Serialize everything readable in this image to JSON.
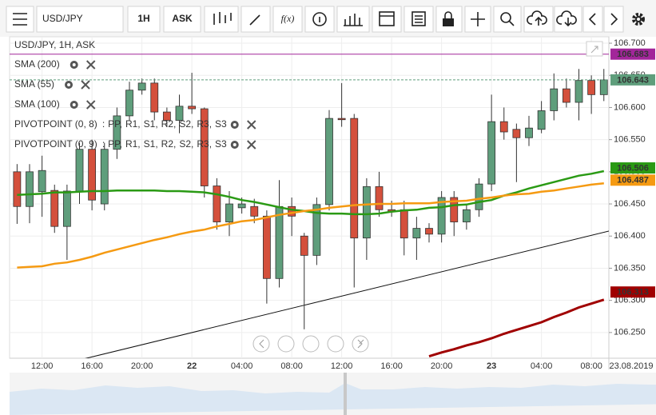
{
  "toolbar": {
    "symbol": "USD/JPY",
    "interval": "1H",
    "side": "ASK",
    "function": "f(x)"
  },
  "legend": {
    "title": "USD/JPY, 1H, ASK",
    "indicators": [
      {
        "name": "SMA (200)",
        "color": "#b00000"
      },
      {
        "name": "SMA (55)",
        "color": "#2a9a14"
      },
      {
        "name": "SMA (100)",
        "color": "#f59a12"
      }
    ],
    "pivots": [
      {
        "name": "PIVOTPOINT (0, 8)"
      },
      {
        "name": "PIVOTPOINT (0, 9)"
      }
    ],
    "separator": ":",
    "pivot_items": [
      {
        "text": "PP,",
        "color": "#d63ad6"
      },
      {
        "text": "R1,",
        "color": "#1a9a5a"
      },
      {
        "text": "S1,",
        "color": "#8a8a1a"
      },
      {
        "text": "R2,",
        "color": "#2a3aa0"
      },
      {
        "text": "S2,",
        "color": "#555555"
      },
      {
        "text": "R3,",
        "color": "#e0801a"
      },
      {
        "text": "S3",
        "color": "#9a2ab0"
      }
    ]
  },
  "chart_data": {
    "type": "candlestick",
    "categories": [
      null,
      null,
      "12:00",
      null,
      null,
      null,
      "16:00",
      null,
      null,
      null,
      "20:00",
      null,
      null,
      null,
      "22",
      null,
      null,
      null,
      "04:00",
      null,
      null,
      null,
      "08:00",
      null,
      null,
      null,
      "12:00",
      null,
      null,
      null,
      "16:00",
      null,
      null,
      null,
      "20:00",
      null,
      null,
      null,
      "23",
      null,
      null,
      null,
      "04:00",
      null,
      null,
      null,
      "08:00",
      null
    ],
    "date_label": "23.08.2019",
    "open": [
      106.5,
      106.446,
      106.469,
      106.471,
      106.415,
      106.469,
      106.535,
      106.45,
      106.535,
      106.587,
      106.627,
      106.638,
      106.593,
      106.58,
      106.602,
      106.598,
      106.478,
      106.422,
      106.444,
      106.446,
      106.431,
      106.334,
      106.446,
      106.4,
      106.37,
      106.449,
      106.583,
      106.583,
      106.397,
      106.477,
      106.441,
      106.441,
      106.397,
      106.412,
      106.403,
      106.46,
      106.422,
      106.441,
      106.481,
      106.578,
      106.566,
      106.553,
      106.566,
      106.595,
      106.629,
      106.608,
      106.642,
      106.62
    ],
    "high": [
      106.512,
      106.512,
      106.525,
      106.48,
      106.48,
      106.545,
      106.55,
      106.545,
      106.6,
      106.64,
      106.645,
      106.645,
      106.6,
      106.62,
      106.654,
      106.6,
      106.49,
      106.47,
      106.46,
      106.458,
      106.44,
      106.487,
      106.46,
      106.405,
      106.46,
      106.596,
      106.638,
      106.59,
      106.49,
      106.5,
      106.455,
      106.455,
      106.43,
      106.42,
      106.47,
      106.47,
      106.45,
      106.49,
      106.62,
      106.6,
      106.575,
      106.587,
      106.61,
      106.653,
      106.645,
      106.66,
      106.65,
      106.66
    ],
    "low": [
      106.419,
      106.42,
      106.43,
      106.405,
      106.363,
      106.45,
      106.44,
      106.44,
      106.52,
      106.58,
      106.62,
      106.58,
      106.57,
      106.56,
      106.59,
      106.46,
      106.41,
      106.4,
      106.435,
      106.42,
      106.295,
      106.32,
      106.4,
      106.255,
      106.355,
      106.44,
      106.57,
      106.32,
      106.363,
      106.43,
      106.43,
      106.37,
      106.363,
      106.39,
      106.39,
      106.4,
      106.41,
      106.43,
      106.47,
      106.55,
      106.484,
      106.54,
      106.56,
      106.58,
      106.6,
      106.58,
      106.59,
      106.61
    ],
    "close": [
      106.446,
      106.5,
      106.502,
      106.415,
      106.47,
      106.535,
      106.456,
      106.535,
      106.587,
      106.627,
      106.638,
      106.593,
      106.58,
      106.602,
      106.598,
      106.478,
      106.422,
      106.45,
      106.45,
      106.431,
      106.334,
      106.446,
      106.431,
      106.37,
      106.449,
      106.583,
      106.581,
      106.397,
      106.477,
      106.441,
      106.438,
      106.397,
      106.412,
      106.403,
      106.46,
      106.422,
      106.441,
      106.481,
      106.578,
      106.562,
      106.553,
      106.568,
      106.595,
      106.629,
      106.608,
      106.642,
      106.62,
      106.643
    ],
    "up_color": "#5f9e7c",
    "down_color": "#d4503c",
    "series": [
      {
        "name": "SMA (200)",
        "color": "#a00000",
        "width": 3,
        "values": [
          null,
          null,
          null,
          null,
          null,
          null,
          null,
          null,
          null,
          null,
          null,
          null,
          null,
          null,
          null,
          null,
          null,
          null,
          null,
          null,
          null,
          null,
          null,
          null,
          null,
          null,
          null,
          null,
          null,
          null,
          null,
          null,
          null,
          106.213,
          106.219,
          106.224,
          106.23,
          106.235,
          106.241,
          106.248,
          106.254,
          106.26,
          106.266,
          106.274,
          106.281,
          106.289,
          106.295,
          106.301
        ]
      },
      {
        "name": "SMA (55)",
        "color": "#2a9a14",
        "width": 2.5,
        "values": [
          106.464,
          106.465,
          106.466,
          106.468,
          106.468,
          106.469,
          106.47,
          106.47,
          106.471,
          106.471,
          106.471,
          106.471,
          106.47,
          106.47,
          106.469,
          106.468,
          106.465,
          106.461,
          106.456,
          106.453,
          106.449,
          106.445,
          106.441,
          106.439,
          106.436,
          106.435,
          106.435,
          106.434,
          106.434,
          106.435,
          106.438,
          106.44,
          106.441,
          106.444,
          106.445,
          106.448,
          106.449,
          106.453,
          106.456,
          106.463,
          106.468,
          106.474,
          106.479,
          106.484,
          106.489,
          106.494,
          106.497,
          106.501
        ]
      },
      {
        "name": "SMA (100)",
        "color": "#f59a12",
        "width": 2.5,
        "values": [
          106.351,
          106.352,
          106.353,
          106.357,
          106.359,
          106.363,
          106.368,
          106.374,
          106.379,
          106.384,
          106.389,
          106.394,
          106.398,
          106.403,
          106.407,
          106.41,
          106.415,
          106.419,
          106.423,
          106.425,
          106.429,
          106.433,
          106.436,
          106.439,
          106.441,
          106.444,
          106.446,
          106.448,
          106.449,
          106.45,
          106.45,
          106.451,
          106.451,
          106.451,
          106.453,
          106.454,
          106.455,
          106.458,
          106.46,
          106.463,
          106.465,
          106.466,
          106.469,
          106.471,
          106.474,
          106.477,
          106.48,
          106.482
        ]
      }
    ],
    "ylim": [
      106.21,
      106.71
    ],
    "yticks": [
      {
        "value": 106.7,
        "label": "106.700"
      },
      {
        "value": 106.65,
        "label": "106.650"
      },
      {
        "value": 106.6,
        "label": "106.600"
      },
      {
        "value": 106.55,
        "label": "106.550"
      },
      {
        "value": 106.5,
        "label": "106.500"
      },
      {
        "value": 106.45,
        "label": "106.450"
      },
      {
        "value": 106.4,
        "label": "106.400"
      },
      {
        "value": 106.35,
        "label": "106.350"
      },
      {
        "value": 106.3,
        "label": "106.300"
      },
      {
        "value": 106.25,
        "label": "106.250"
      }
    ],
    "price_labels": [
      {
        "value": 106.683,
        "color": "#a2269a",
        "line": "solid"
      },
      {
        "value": 106.643,
        "color": "#5f9e7c",
        "line": "dashed"
      },
      {
        "value": 106.506,
        "color": "#2a9a14"
      },
      {
        "value": 106.487,
        "color": "#f59a12"
      },
      {
        "value": 106.313,
        "color": "#a00000"
      }
    ],
    "grid": true
  }
}
